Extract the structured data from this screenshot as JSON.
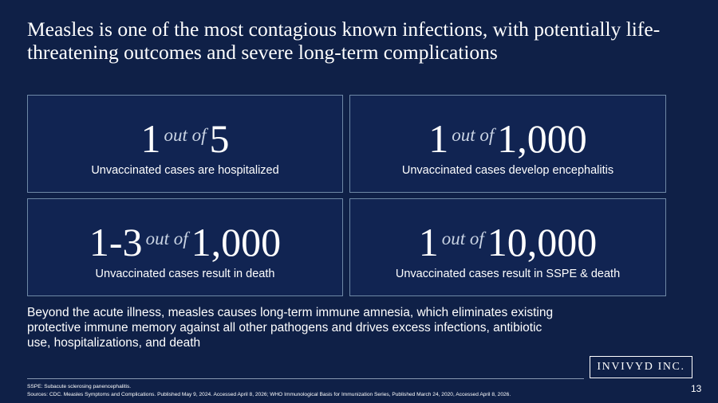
{
  "slide": {
    "title": "Measles is one of the most contagious known infections, with potentially life-threatening outcomes and severe long-term complications",
    "stats": [
      {
        "numerator": "1",
        "connector": "out of",
        "denominator": "5",
        "description": "Unvaccinated cases are hospitalized"
      },
      {
        "numerator": "1",
        "connector": "out of",
        "denominator": "1,000",
        "description": "Unvaccinated cases develop encephalitis"
      },
      {
        "numerator": "1-3",
        "connector": "out of",
        "denominator": "1,000",
        "description": "Unvaccinated cases result in death"
      },
      {
        "numerator": "1",
        "connector": "out of",
        "denominator": "10,000",
        "description": "Unvaccinated cases result in SSPE & death"
      }
    ],
    "body": "Beyond the acute illness, measles causes long-term immune amnesia, which eliminates existing protective immune memory against all other pathogens and drives excess infections, antibiotic use, hospitalizations, and death",
    "logo_text": "INVIVYD INC.",
    "footnotes": {
      "abbreviation": "SSPE: Subacute sclerosing panencephalitis.",
      "sources": "Sources: CDC. Measles Symptoms and Complications. Published May 9, 2024. Accessed April 8, 2026; WHO Immunological Basis for Immunization Series, Published March 24, 2020, Accessed April 8, 2026."
    },
    "page_number": "13"
  },
  "colors": {
    "background": "#0f2047",
    "card_border": "#6e88a6",
    "text": "#ffffff"
  }
}
